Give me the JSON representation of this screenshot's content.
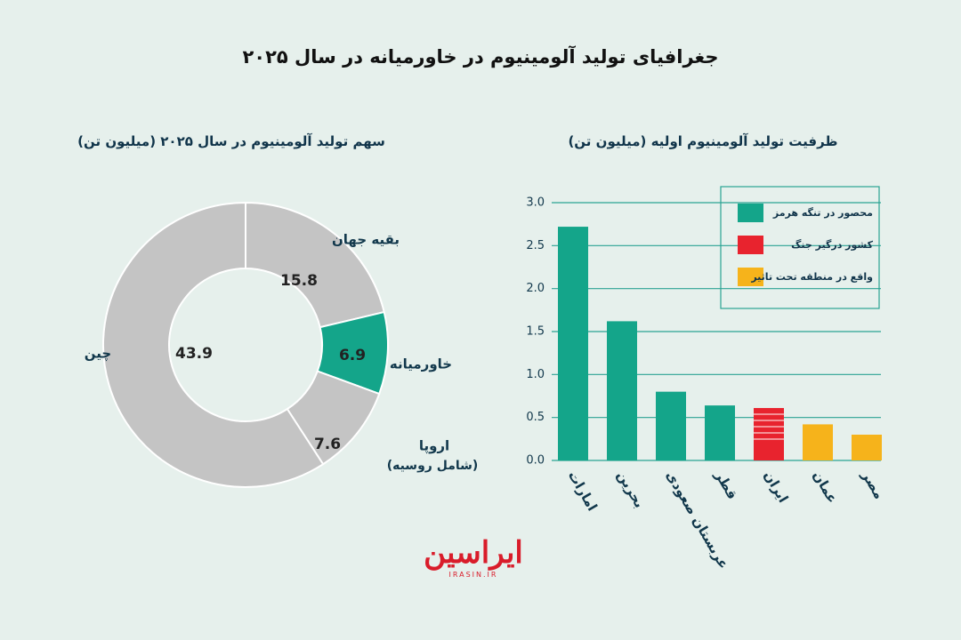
{
  "main_title": "جغرافیای تولید آلومینیوم در خاورمیانه در سال ۲۰۲۵",
  "logo": {
    "text": "ایراسین",
    "sub": "IRASIN.IR"
  },
  "colors": {
    "background": "#e6f0ec",
    "green": "#14a58a",
    "red": "#e8232e",
    "orange": "#f6b31b",
    "gray": "#c4c4c4",
    "axis_text": "#12384c",
    "grid": "#2aa393"
  },
  "chart_data": [
    {
      "type": "pie",
      "title": "سهم تولید آلومینیوم در سال ۲۰۲۵ (میلیون تن)",
      "slices": [
        {
          "label": "بقیه جهان",
          "value": 15.8,
          "value_label": "15.8",
          "color": "#c4c4c4"
        },
        {
          "label": "خاورمیانه",
          "value": 6.9,
          "value_label": "6.9",
          "color": "#14a58a"
        },
        {
          "label": "اروپا",
          "label2": "(شامل روسیه)",
          "value": 7.6,
          "value_label": "7.6",
          "color": "#c4c4c4"
        },
        {
          "label": "چین",
          "value": 43.9,
          "value_label": "43.9",
          "color": "#c4c4c4"
        }
      ]
    },
    {
      "type": "bar",
      "title": "ظرفیت تولید آلومینیوم اولیه (میلیون تن)",
      "categories": [
        "امارات",
        "بحرین",
        "عربستان صعودی",
        "قطر",
        "ایران",
        "عمان",
        "مصر"
      ],
      "values": [
        2.72,
        1.62,
        0.8,
        0.64,
        0.61,
        0.42,
        0.3
      ],
      "groups": [
        "g",
        "g",
        "g",
        "g",
        "r",
        "o",
        "o"
      ],
      "ylim": [
        0,
        3.0
      ],
      "yticks": [
        "0.0",
        "0.5",
        "1.0",
        "1.5",
        "2.0",
        "2.5",
        "3.0"
      ],
      "grid": true,
      "legend_position": "top-right",
      "legend": [
        {
          "key": "g",
          "label": "محصور در تنگه هرمز",
          "color": "#14a58a"
        },
        {
          "key": "r",
          "label": "کشور درگیر جنگ",
          "color": "#e8232e"
        },
        {
          "key": "o",
          "label": "واقع در منطقه تحت تاثیر",
          "color": "#f6b31b"
        }
      ]
    }
  ]
}
